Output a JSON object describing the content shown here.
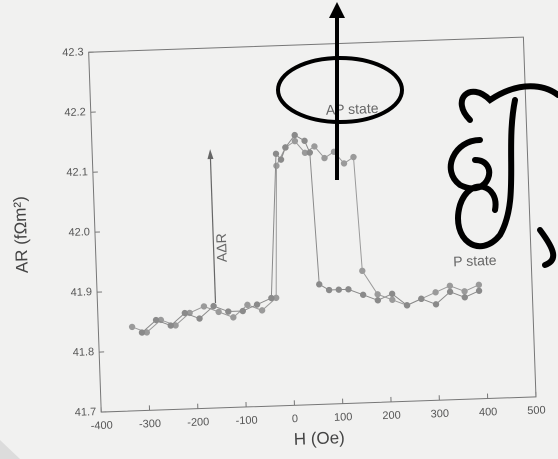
{
  "chart_data": {
    "type": "line",
    "xlabel": "H (Oe)",
    "ylabel": "AR (fΩm²)",
    "annotations": [
      "AP state",
      "P state",
      "AΔR"
    ],
    "xlim": [
      -400,
      500
    ],
    "xticks": [
      -400,
      -300,
      -200,
      -100,
      0,
      100,
      200,
      300,
      400,
      500
    ],
    "ylim": [
      41.7,
      42.3
    ],
    "yticks": [
      41.7,
      41.8,
      41.9,
      {
        "value": 42,
        "label": "42.0"
      },
      42.1,
      42.2,
      42.3
    ],
    "series": [
      {
        "color": "#9a9a9a",
        "x": [
          -330,
          -300,
          -270,
          -240,
          -210,
          -180,
          -150,
          -120,
          -90,
          -60,
          -30,
          -20,
          0,
          20,
          40,
          60,
          80,
          100,
          120,
          140,
          150,
          180,
          210,
          240,
          270,
          300,
          330,
          360,
          390
        ],
        "values": [
          41.84,
          41.83,
          41.85,
          41.84,
          41.86,
          41.87,
          41.86,
          41.85,
          41.87,
          41.86,
          41.88,
          42.1,
          42.13,
          42.14,
          42.12,
          42.13,
          42.11,
          42.12,
          42.1,
          42.11,
          41.92,
          41.88,
          41.87,
          41.86,
          41.87,
          41.88,
          41.89,
          41.88,
          41.89
        ]
      },
      {
        "color": "#8a8a8a",
        "x": [
          390,
          360,
          330,
          300,
          270,
          240,
          210,
          180,
          150,
          120,
          100,
          80,
          60,
          50,
          40,
          20,
          0,
          -10,
          -20,
          -40,
          -70,
          -100,
          -130,
          -160,
          -190,
          -220,
          -250,
          -280,
          -310
        ],
        "values": [
          41.88,
          41.87,
          41.88,
          41.86,
          41.87,
          41.86,
          41.88,
          41.87,
          41.88,
          41.89,
          41.89,
          41.89,
          41.9,
          42.12,
          42.14,
          42.15,
          42.13,
          42.11,
          42.12,
          41.88,
          41.87,
          41.86,
          41.86,
          41.87,
          41.85,
          41.86,
          41.84,
          41.85,
          41.83
        ]
      }
    ]
  }
}
